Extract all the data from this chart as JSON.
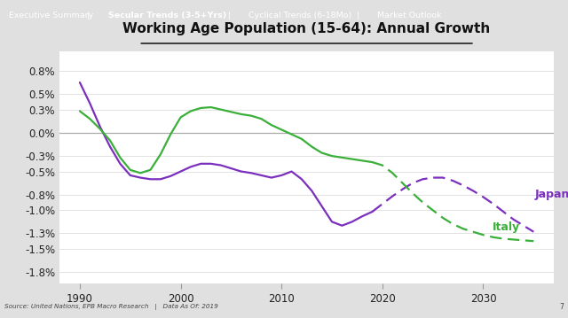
{
  "title": "Working Age Population (15-64): Annual Growth",
  "footer_text": "Source: United Nations, EPB Macro Research   |   Data As Of: 2019",
  "footer_page": "7",
  "header_bg": "#1c1c1c",
  "footer_bg": "#cccccc",
  "chart_bg": "#ffffff",
  "fig_bg": "#e0e0e0",
  "japan_color": "#7B2FBE",
  "italy_color": "#3aaf3a",
  "japan_label": "Japan",
  "italy_label": "Italy",
  "ylabel_values": [
    "0.8%",
    "0.5%",
    "0.3%",
    "0.0%",
    "-0.3%",
    "-0.5%",
    "-0.8%",
    "-1.0%",
    "-1.3%",
    "-1.5%",
    "-1.8%"
  ],
  "ytick_values": [
    0.008,
    0.005,
    0.003,
    0.0,
    -0.003,
    -0.005,
    -0.008,
    -0.01,
    -0.013,
    -0.015,
    -0.018
  ],
  "xlim": [
    1988,
    2037
  ],
  "ylim": [
    -0.0195,
    0.0105
  ],
  "xticks": [
    1990,
    2000,
    2010,
    2020,
    2030
  ],
  "japan_solid_x": [
    1990,
    1991,
    1992,
    1993,
    1994,
    1995,
    1996,
    1997,
    1998,
    1999,
    2000,
    2001,
    2002,
    2003,
    2004,
    2005,
    2006,
    2007,
    2008,
    2009,
    2010,
    2011,
    2012,
    2013,
    2014,
    2015,
    2016,
    2017,
    2018,
    2019
  ],
  "japan_solid_y": [
    0.0065,
    0.0038,
    0.0008,
    -0.0018,
    -0.004,
    -0.0055,
    -0.0058,
    -0.006,
    -0.006,
    -0.0056,
    -0.005,
    -0.0044,
    -0.004,
    -0.004,
    -0.0042,
    -0.0046,
    -0.005,
    -0.0052,
    -0.0055,
    -0.0058,
    -0.0055,
    -0.005,
    -0.006,
    -0.0075,
    -0.0095,
    -0.0115,
    -0.012,
    -0.0115,
    -0.0108,
    -0.0102
  ],
  "japan_dash_x": [
    2019,
    2020,
    2021,
    2022,
    2023,
    2024,
    2025,
    2026,
    2027,
    2028,
    2029,
    2030,
    2031,
    2032,
    2033,
    2034,
    2035
  ],
  "japan_dash_y": [
    -0.0102,
    -0.0092,
    -0.0082,
    -0.0073,
    -0.0065,
    -0.006,
    -0.0058,
    -0.0058,
    -0.0062,
    -0.0068,
    -0.0075,
    -0.0083,
    -0.0092,
    -0.0102,
    -0.0112,
    -0.012,
    -0.0128
  ],
  "italy_solid_x": [
    1990,
    1991,
    1992,
    1993,
    1994,
    1995,
    1996,
    1997,
    1998,
    1999,
    2000,
    2001,
    2002,
    2003,
    2004,
    2005,
    2006,
    2007,
    2008,
    2009,
    2010,
    2011,
    2012,
    2013,
    2014,
    2015,
    2016,
    2017,
    2018,
    2019
  ],
  "italy_solid_y": [
    0.0028,
    0.0018,
    0.0005,
    -0.001,
    -0.0032,
    -0.0048,
    -0.0052,
    -0.0048,
    -0.0028,
    -0.0002,
    0.002,
    0.0028,
    0.0032,
    0.0033,
    0.003,
    0.0027,
    0.0024,
    0.0022,
    0.0018,
    0.001,
    0.0004,
    -0.0002,
    -0.0008,
    -0.0018,
    -0.0026,
    -0.003,
    -0.0032,
    -0.0034,
    -0.0036,
    -0.0038
  ],
  "italy_dash_x": [
    2019,
    2020,
    2021,
    2022,
    2023,
    2024,
    2025,
    2026,
    2027,
    2028,
    2029,
    2030,
    2031,
    2032,
    2033,
    2034,
    2035
  ],
  "italy_dash_y": [
    -0.0038,
    -0.0042,
    -0.0052,
    -0.0065,
    -0.0078,
    -0.009,
    -0.01,
    -0.011,
    -0.0118,
    -0.0124,
    -0.0128,
    -0.0132,
    -0.0135,
    -0.0137,
    -0.0138,
    -0.0139,
    -0.014
  ],
  "header_parts": [
    [
      "Executive Summary",
      false
    ],
    [
      "   |   ",
      false
    ],
    [
      "Secular Trends (3-5+Yrs)",
      true
    ],
    [
      "   |   ",
      false
    ],
    [
      "Cyclical Trends (6-18Mo)",
      false
    ],
    [
      "   |   ",
      false
    ],
    [
      "Market Outlook",
      false
    ]
  ]
}
